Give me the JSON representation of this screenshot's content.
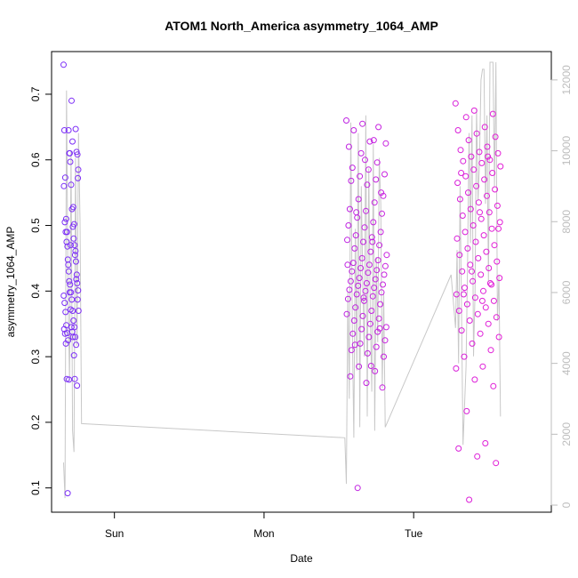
{
  "chart_data": {
    "type": "scatter",
    "title": "ATOM1 North_America asymmetry_1064_AMP",
    "xlabel": "Date",
    "ylabel": "asymmetry_1064_AMP",
    "x_tick_labels": [
      "Sun",
      "Mon",
      "Tue"
    ],
    "xlim_days": [
      -0.42,
      2.92
    ],
    "ylim": [
      0.063,
      0.765
    ],
    "y_ticks": [
      0.1,
      0.2,
      0.3,
      0.4,
      0.5,
      0.6,
      0.7
    ],
    "y2lim": [
      -200,
      12800
    ],
    "y2_ticks": [
      0,
      2000,
      4000,
      6000,
      8000,
      10000,
      12000
    ],
    "grid": false,
    "legend": "none",
    "colors": {
      "point_start": "#7b2ff7",
      "point_end": "#e31dd6",
      "line": "#c8c8c8",
      "right_axis": "#bdbdbd",
      "axes": "#000000"
    },
    "series": [
      {
        "type": "scatter",
        "axis": "left",
        "groups": [
          {
            "x_range": [
              -0.34,
              -0.24
            ],
            "y": [
              0.745,
              0.69,
              0.645,
              0.628,
              0.573,
              0.528,
              0.51,
              0.502,
              0.49,
              0.455,
              0.448,
              0.445,
              0.43,
              0.425,
              0.398,
              0.387,
              0.372,
              0.37,
              0.345,
              0.342,
              0.338,
              0.335,
              0.33,
              0.32,
              0.302,
              0.266,
              0.266,
              0.092,
              0.647,
              0.645,
              0.612,
              0.61,
              0.608,
              0.597,
              0.585,
              0.562,
              0.56,
              0.525,
              0.505,
              0.498,
              0.49,
              0.48,
              0.475,
              0.47,
              0.468,
              0.461,
              0.44,
              0.418,
              0.415,
              0.412,
              0.41,
              0.401,
              0.398,
              0.393,
              0.387,
              0.382,
              0.37,
              0.368,
              0.355,
              0.348,
              0.345,
              0.336,
              0.33,
              0.325,
              0.318,
              0.265,
              0.256,
              0.61,
              0.572,
              0.47
            ]
          },
          {
            "x_range": [
              1.55,
              1.82
            ],
            "y": [
              0.66,
              0.655,
              0.65,
              0.645,
              0.628,
              0.625,
              0.61,
              0.596,
              0.588,
              0.585,
              0.578,
              0.575,
              0.57,
              0.568,
              0.562,
              0.545,
              0.54,
              0.535,
              0.525,
              0.522,
              0.518,
              0.512,
              0.505,
              0.5,
              0.497,
              0.49,
              0.485,
              0.482,
              0.478,
              0.475,
              0.47,
              0.465,
              0.46,
              0.455,
              0.45,
              0.447,
              0.443,
              0.44,
              0.438,
              0.435,
              0.432,
              0.43,
              0.428,
              0.425,
              0.42,
              0.418,
              0.415,
              0.412,
              0.41,
              0.408,
              0.405,
              0.402,
              0.4,
              0.398,
              0.395,
              0.392,
              0.388,
              0.385,
              0.38,
              0.375,
              0.37,
              0.365,
              0.362,
              0.358,
              0.355,
              0.35,
              0.345,
              0.342,
              0.338,
              0.335,
              0.33,
              0.325,
              0.32,
              0.315,
              0.31,
              0.305,
              0.3,
              0.285,
              0.278,
              0.27,
              0.26,
              0.253,
              0.1,
              0.63,
              0.62,
              0.6,
              0.55,
              0.52,
              0.475,
              0.44,
              0.39,
              0.343,
              0.318,
              0.286
            ]
          },
          {
            "x_range": [
              2.28,
              2.58
            ],
            "y": [
              0.686,
              0.675,
              0.67,
              0.665,
              0.65,
              0.645,
              0.64,
              0.635,
              0.63,
              0.62,
              0.615,
              0.612,
              0.61,
              0.605,
              0.6,
              0.598,
              0.595,
              0.59,
              0.585,
              0.58,
              0.575,
              0.57,
              0.565,
              0.56,
              0.555,
              0.55,
              0.545,
              0.54,
              0.535,
              0.53,
              0.525,
              0.52,
              0.515,
              0.51,
              0.505,
              0.5,
              0.495,
              0.49,
              0.485,
              0.48,
              0.475,
              0.47,
              0.465,
              0.46,
              0.455,
              0.45,
              0.445,
              0.44,
              0.435,
              0.43,
              0.425,
              0.42,
              0.415,
              0.41,
              0.405,
              0.4,
              0.395,
              0.39,
              0.385,
              0.38,
              0.375,
              0.37,
              0.365,
              0.36,
              0.355,
              0.35,
              0.34,
              0.335,
              0.33,
              0.32,
              0.31,
              0.3,
              0.285,
              0.282,
              0.265,
              0.255,
              0.217,
              0.168,
              0.16,
              0.148,
              0.138,
              0.082,
              0.605,
              0.58,
              0.52,
              0.495,
              0.43,
              0.412,
              0.395,
              0.385
            ]
          }
        ]
      },
      {
        "type": "line",
        "axis": "right",
        "x_days": [
          -0.34,
          -0.33,
          -0.32,
          -0.31,
          -0.3,
          -0.29,
          -0.28,
          -0.27,
          -0.26,
          -0.25,
          -0.24,
          -0.23,
          -0.22,
          1.54,
          1.55,
          1.56,
          1.57,
          1.58,
          1.59,
          1.6,
          1.61,
          1.62,
          1.63,
          1.64,
          1.65,
          1.66,
          1.67,
          1.68,
          1.69,
          1.7,
          1.71,
          1.72,
          1.73,
          1.74,
          1.75,
          1.76,
          1.77,
          1.78,
          1.79,
          1.8,
          1.81,
          2.25,
          2.28,
          2.29,
          2.3,
          2.31,
          2.32,
          2.33,
          2.34,
          2.35,
          2.36,
          2.37,
          2.38,
          2.39,
          2.4,
          2.41,
          2.42,
          2.43,
          2.44,
          2.45,
          2.46,
          2.47,
          2.48,
          2.49,
          2.5,
          2.51,
          2.52,
          2.53,
          2.54,
          2.55,
          2.56,
          2.57,
          2.58
        ],
        "y": [
          1200,
          200,
          11700,
          6000,
          3500,
          10000,
          2100,
          1500,
          9800,
          4500,
          10500,
          8000,
          2300,
          1900,
          600,
          6000,
          3000,
          10800,
          5000,
          1900,
          7800,
          3800,
          10500,
          2200,
          9000,
          6200,
          4200,
          11000,
          2500,
          9500,
          5500,
          3200,
          10200,
          2100,
          7000,
          4600,
          9800,
          8500,
          3300,
          6000,
          2200,
          6500,
          5000,
          7200,
          4000,
          9000,
          5500,
          1700,
          2800,
          3900,
          6800,
          10500,
          7400,
          11000,
          4200,
          6000,
          11200,
          8600,
          9700,
          12000,
          12300,
          12300,
          8500,
          11000,
          6300,
          12500,
          12500,
          12500,
          9000,
          12500,
          5200,
          6500,
          2500
        ]
      }
    ]
  }
}
